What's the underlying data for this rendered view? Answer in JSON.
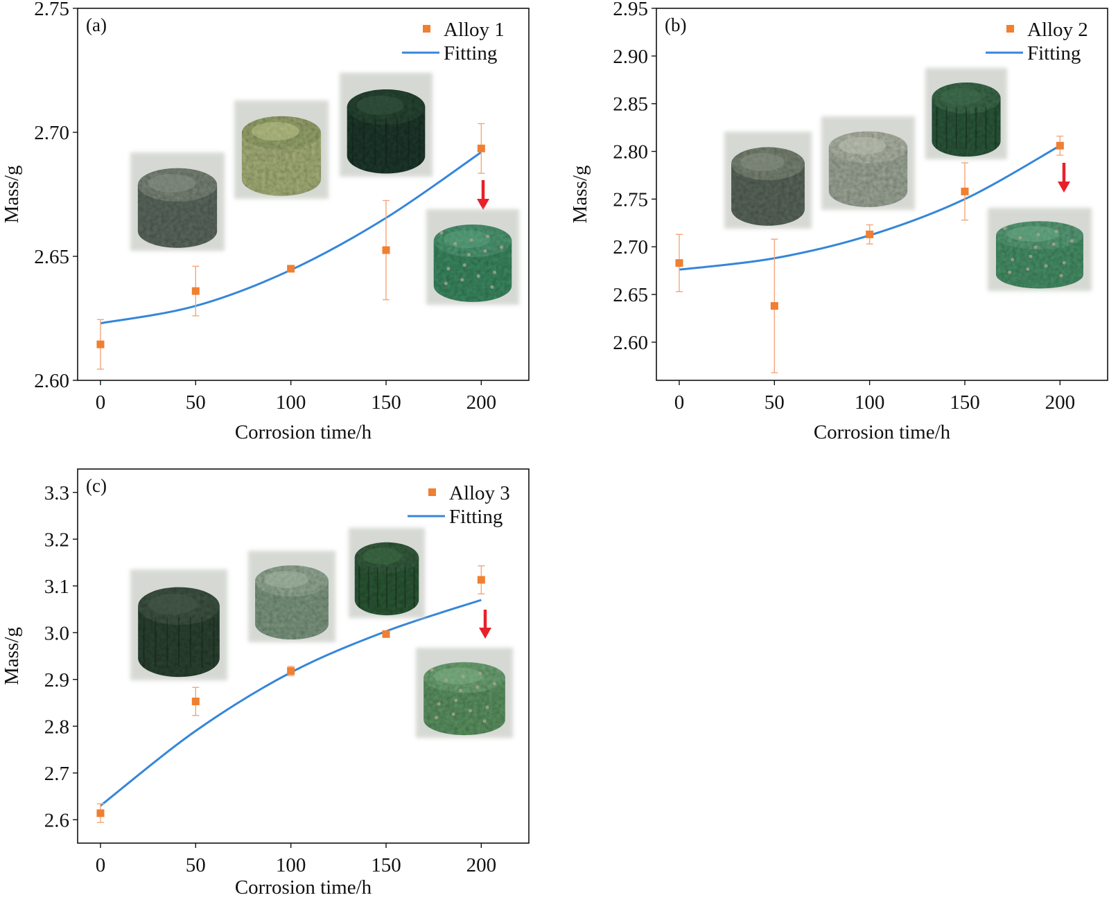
{
  "chart_data": [
    {
      "type": "scatter",
      "panel_label": "(a)",
      "xlabel": "Corrosion time/h",
      "ylabel": "Mass/g",
      "xlim": [
        -12,
        225
      ],
      "ylim": [
        2.6,
        2.75
      ],
      "xticks": [
        "0",
        "50",
        "100",
        "150",
        "200"
      ],
      "yticks": [
        "2.60",
        "2.65",
        "2.70",
        "2.75"
      ],
      "legend_position": "top-right",
      "series": [
        {
          "name": "Alloy 1",
          "marker": "square",
          "color": "#f07f31",
          "x": [
            0,
            50,
            100,
            150,
            200
          ],
          "y": [
            2.6145,
            2.636,
            2.645,
            2.6525,
            2.6935
          ],
          "yerr": [
            0.01,
            0.01,
            0.001,
            0.02,
            0.01
          ]
        },
        {
          "name": "Fitting",
          "style": "line",
          "color": "#3586d9",
          "x": [
            0,
            50,
            100,
            150,
            200
          ],
          "y": [
            2.623,
            2.63,
            2.6445,
            2.6655,
            2.692
          ]
        }
      ],
      "annotations": {
        "arrow": "down-arrow-red",
        "images": [
          "alloy1-sample-0h",
          "alloy1-sample-50h",
          "alloy1-sample-100h",
          "alloy1-sample-200h"
        ]
      }
    },
    {
      "type": "scatter",
      "panel_label": "(b)",
      "xlabel": "Corrosion time/h",
      "ylabel": "Mass/g",
      "xlim": [
        -12,
        225
      ],
      "ylim": [
        2.56,
        2.95
      ],
      "xticks": [
        "0",
        "50",
        "100",
        "150",
        "200"
      ],
      "yticks": [
        "2.60",
        "2.65",
        "2.70",
        "2.75",
        "2.80",
        "2.85",
        "2.90",
        "2.95"
      ],
      "legend_position": "top-right",
      "series": [
        {
          "name": "Alloy 2",
          "marker": "square",
          "color": "#f07f31",
          "x": [
            0,
            50,
            100,
            150,
            200
          ],
          "y": [
            2.683,
            2.638,
            2.713,
            2.758,
            2.806
          ],
          "yerr": [
            0.03,
            0.07,
            0.01,
            0.03,
            0.01
          ]
        },
        {
          "name": "Fitting",
          "style": "line",
          "color": "#3586d9",
          "x": [
            0,
            50,
            100,
            150,
            200
          ],
          "y": [
            2.676,
            2.688,
            2.712,
            2.75,
            2.806
          ]
        }
      ],
      "annotations": {
        "arrow": "down-arrow-red",
        "images": [
          "alloy2-sample-0h",
          "alloy2-sample-50h",
          "alloy2-sample-100h",
          "alloy2-sample-200h"
        ]
      }
    },
    {
      "type": "scatter",
      "panel_label": "(c)",
      "xlabel": "Corrosion time/h",
      "ylabel": "Mass/g",
      "xlim": [
        -12,
        225
      ],
      "ylim": [
        2.55,
        3.35
      ],
      "xticks": [
        "0",
        "50",
        "100",
        "150",
        "200"
      ],
      "yticks": [
        "2.6",
        "2.7",
        "2.8",
        "2.9",
        "3.0",
        "3.1",
        "3.2",
        "3.3"
      ],
      "legend_position": "top-right",
      "series": [
        {
          "name": "Alloy 3",
          "marker": "square",
          "color": "#f07f31",
          "x": [
            0,
            50,
            100,
            150,
            200
          ],
          "y": [
            2.614,
            2.853,
            2.918,
            2.997,
            3.113
          ],
          "yerr": [
            0.02,
            0.03,
            0.01,
            0.005,
            0.03
          ]
        },
        {
          "name": "Fitting",
          "style": "line",
          "color": "#3586d9",
          "x": [
            0,
            50,
            100,
            150,
            200
          ],
          "y": [
            2.63,
            2.79,
            2.915,
            3.003,
            3.07
          ]
        }
      ],
      "annotations": {
        "arrow": "down-arrow-red",
        "images": [
          "alloy3-sample-0h",
          "alloy3-sample-50h",
          "alloy3-sample-100h",
          "alloy3-sample-200h"
        ]
      }
    }
  ]
}
